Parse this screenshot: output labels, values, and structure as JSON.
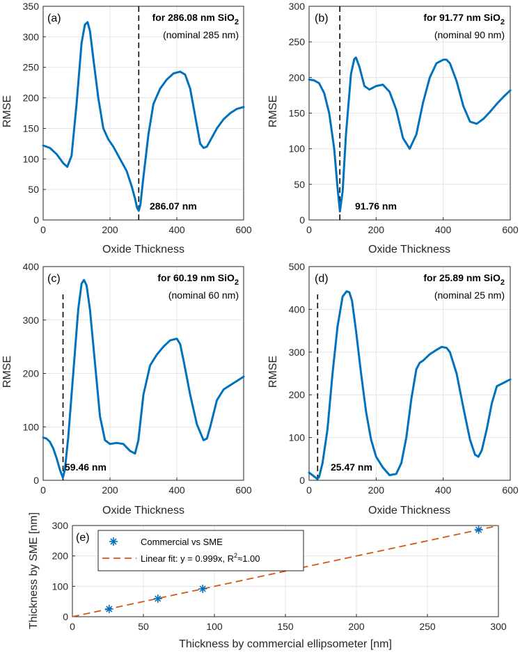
{
  "chart_data": [
    {
      "type": "line",
      "panel_label": "(a)",
      "title_prefix": "for  286.08 nm SiO",
      "title_sub": "2",
      "nominal": "(nominal 285 nm)",
      "min_label": "286.07 nm",
      "min_x": 286.07,
      "xlabel": "Oxide Thickness",
      "ylabel": "RMSE",
      "xlim": [
        0,
        600
      ],
      "ylim": [
        0,
        350
      ],
      "xticks": [
        0,
        200,
        400,
        600
      ],
      "yticks": [
        0,
        50,
        100,
        150,
        200,
        250,
        300,
        350
      ],
      "x": [
        0,
        20,
        40,
        60,
        72,
        85,
        100,
        115,
        125,
        133,
        140,
        150,
        165,
        180,
        195,
        210,
        230,
        250,
        265,
        275,
        281,
        286,
        291,
        300,
        315,
        330,
        350,
        370,
        390,
        410,
        425,
        440,
        455,
        470,
        480,
        490,
        500,
        520,
        540,
        560,
        580,
        600
      ],
      "y": [
        122,
        118,
        108,
        93,
        87,
        105,
        190,
        290,
        320,
        324,
        310,
        265,
        200,
        150,
        132,
        120,
        100,
        80,
        55,
        35,
        20,
        15,
        25,
        70,
        140,
        190,
        215,
        230,
        240,
        243,
        238,
        215,
        170,
        125,
        118,
        120,
        130,
        150,
        165,
        175,
        182,
        185
      ]
    },
    {
      "type": "line",
      "panel_label": "(b)",
      "title_prefix": "for  91.77 nm SiO",
      "title_sub": "2",
      "nominal": "(nominal 90 nm)",
      "min_label": "91.76 nm",
      "min_x": 91.76,
      "xlabel": "Oxide Thickness",
      "ylabel": "RMSE",
      "xlim": [
        0,
        600
      ],
      "ylim": [
        0,
        300
      ],
      "xticks": [
        0,
        200,
        400,
        600
      ],
      "yticks": [
        0,
        50,
        100,
        150,
        200,
        250,
        300
      ],
      "x": [
        0,
        15,
        30,
        45,
        60,
        75,
        85,
        92,
        100,
        110,
        125,
        135,
        140,
        150,
        165,
        180,
        200,
        220,
        240,
        260,
        280,
        300,
        320,
        340,
        360,
        380,
        400,
        410,
        420,
        440,
        460,
        480,
        500,
        520,
        540,
        560,
        580,
        600
      ],
      "y": [
        197,
        196,
        192,
        178,
        150,
        100,
        45,
        12,
        40,
        120,
        205,
        226,
        228,
        215,
        188,
        183,
        188,
        190,
        180,
        155,
        115,
        100,
        120,
        165,
        200,
        220,
        225,
        225,
        220,
        195,
        160,
        138,
        135,
        142,
        152,
        163,
        173,
        182
      ]
    },
    {
      "type": "line",
      "panel_label": "(c)",
      "title_prefix": "for  60.19 nm SiO",
      "title_sub": "2",
      "nominal": "(nominal 60 nm)",
      "min_label": "59.46 nm",
      "min_x": 59.46,
      "xlabel": "Oxide Thickness",
      "ylabel": "RMSE",
      "xlim": [
        0,
        600
      ],
      "ylim": [
        0,
        400
      ],
      "xticks": [
        0,
        200,
        400,
        600
      ],
      "yticks": [
        0,
        100,
        200,
        300,
        400
      ],
      "x": [
        0,
        10,
        20,
        30,
        40,
        50,
        59,
        65,
        75,
        90,
        105,
        115,
        122,
        130,
        140,
        155,
        170,
        185,
        200,
        220,
        240,
        260,
        275,
        285,
        300,
        320,
        340,
        360,
        380,
        400,
        410,
        420,
        440,
        460,
        480,
        490,
        500,
        520,
        540,
        560,
        580,
        600
      ],
      "y": [
        80,
        78,
        72,
        60,
        42,
        20,
        5,
        20,
        80,
        200,
        320,
        368,
        375,
        365,
        320,
        220,
        120,
        75,
        68,
        70,
        68,
        55,
        50,
        75,
        160,
        215,
        235,
        250,
        262,
        265,
        255,
        225,
        160,
        105,
        75,
        78,
        100,
        150,
        170,
        178,
        186,
        194
      ]
    },
    {
      "type": "line",
      "panel_label": "(d)",
      "title_prefix": "for  25.89 nm SiO",
      "title_sub": "2",
      "nominal": "(nominal 25 nm)",
      "min_label": "25.47 nm",
      "min_x": 25.47,
      "xlabel": "Oxide Thickness",
      "ylabel": "RMSE",
      "xlim": [
        0,
        600
      ],
      "ylim": [
        0,
        500
      ],
      "xticks": [
        0,
        200,
        400,
        600
      ],
      "yticks": [
        0,
        100,
        200,
        300,
        400,
        500
      ],
      "x": [
        0,
        10,
        20,
        25,
        30,
        40,
        55,
        70,
        85,
        100,
        112,
        120,
        128,
        140,
        155,
        170,
        185,
        200,
        220,
        240,
        260,
        275,
        290,
        305,
        320,
        330,
        340,
        360,
        380,
        395,
        410,
        420,
        440,
        460,
        480,
        495,
        505,
        515,
        530,
        545,
        560,
        580,
        600
      ],
      "y": [
        18,
        12,
        6,
        3,
        8,
        40,
        120,
        250,
        360,
        430,
        442,
        440,
        420,
        350,
        250,
        160,
        95,
        55,
        30,
        12,
        15,
        40,
        100,
        190,
        260,
        275,
        280,
        295,
        305,
        312,
        310,
        300,
        250,
        170,
        95,
        60,
        55,
        70,
        120,
        180,
        220,
        228,
        236
      ]
    },
    {
      "type": "scatter",
      "panel_label": "(e)",
      "xlabel": "Thickness by commercial ellipsometer [nm]",
      "ylabel": "Thickness by SME [nm]",
      "xlim": [
        0,
        300
      ],
      "ylim": [
        0,
        300
      ],
      "xticks": [
        0,
        50,
        100,
        150,
        200,
        250,
        300
      ],
      "yticks": [
        0,
        100,
        200,
        300
      ],
      "series": [
        {
          "name": "Commercial vs SME",
          "x": [
            25.89,
            60.19,
            91.77,
            286.08
          ],
          "y": [
            25.47,
            59.46,
            91.76,
            286.07
          ]
        }
      ],
      "fit": {
        "name_prefix": "Linear fit: y = 0.999x, R",
        "name_sup": "2",
        "name_suffix": "≈1.00",
        "slope": 0.999
      }
    }
  ]
}
